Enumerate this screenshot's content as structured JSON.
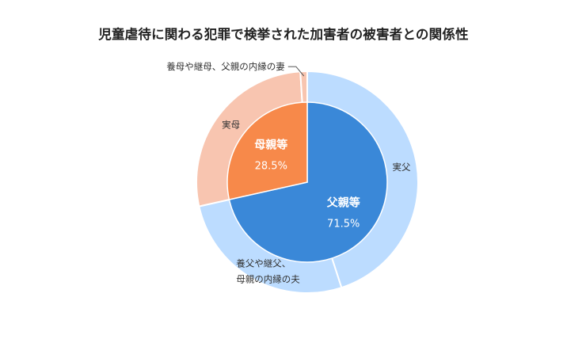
{
  "chart_data": {
    "type": "pie",
    "title": "児童虐待に関わる犯罪で検挙された加害者の被害者との関係性",
    "inner_ring": {
      "slices": [
        {
          "label": "父親等",
          "value": 71.5,
          "value_label": "71.5%",
          "color": "#3a88d8"
        },
        {
          "label": "母親等",
          "value": 28.5,
          "value_label": "28.5%",
          "color": "#f7894a"
        }
      ]
    },
    "outer_ring": {
      "slices": [
        {
          "label": "実父",
          "value": 45.0,
          "color": "#bcdcff"
        },
        {
          "label": "養父や継父、母親の内縁の夫",
          "label_lines": [
            "養父や継父、",
            "母親の内縁の夫"
          ],
          "value": 26.5,
          "color": "#bcdcff"
        },
        {
          "label": "実母",
          "value": 27.5,
          "color": "#f8c5b0"
        },
        {
          "label": "養母や継母、父親の内縁の妻",
          "value": 1.0,
          "color": "#f8c5b0"
        }
      ]
    }
  }
}
